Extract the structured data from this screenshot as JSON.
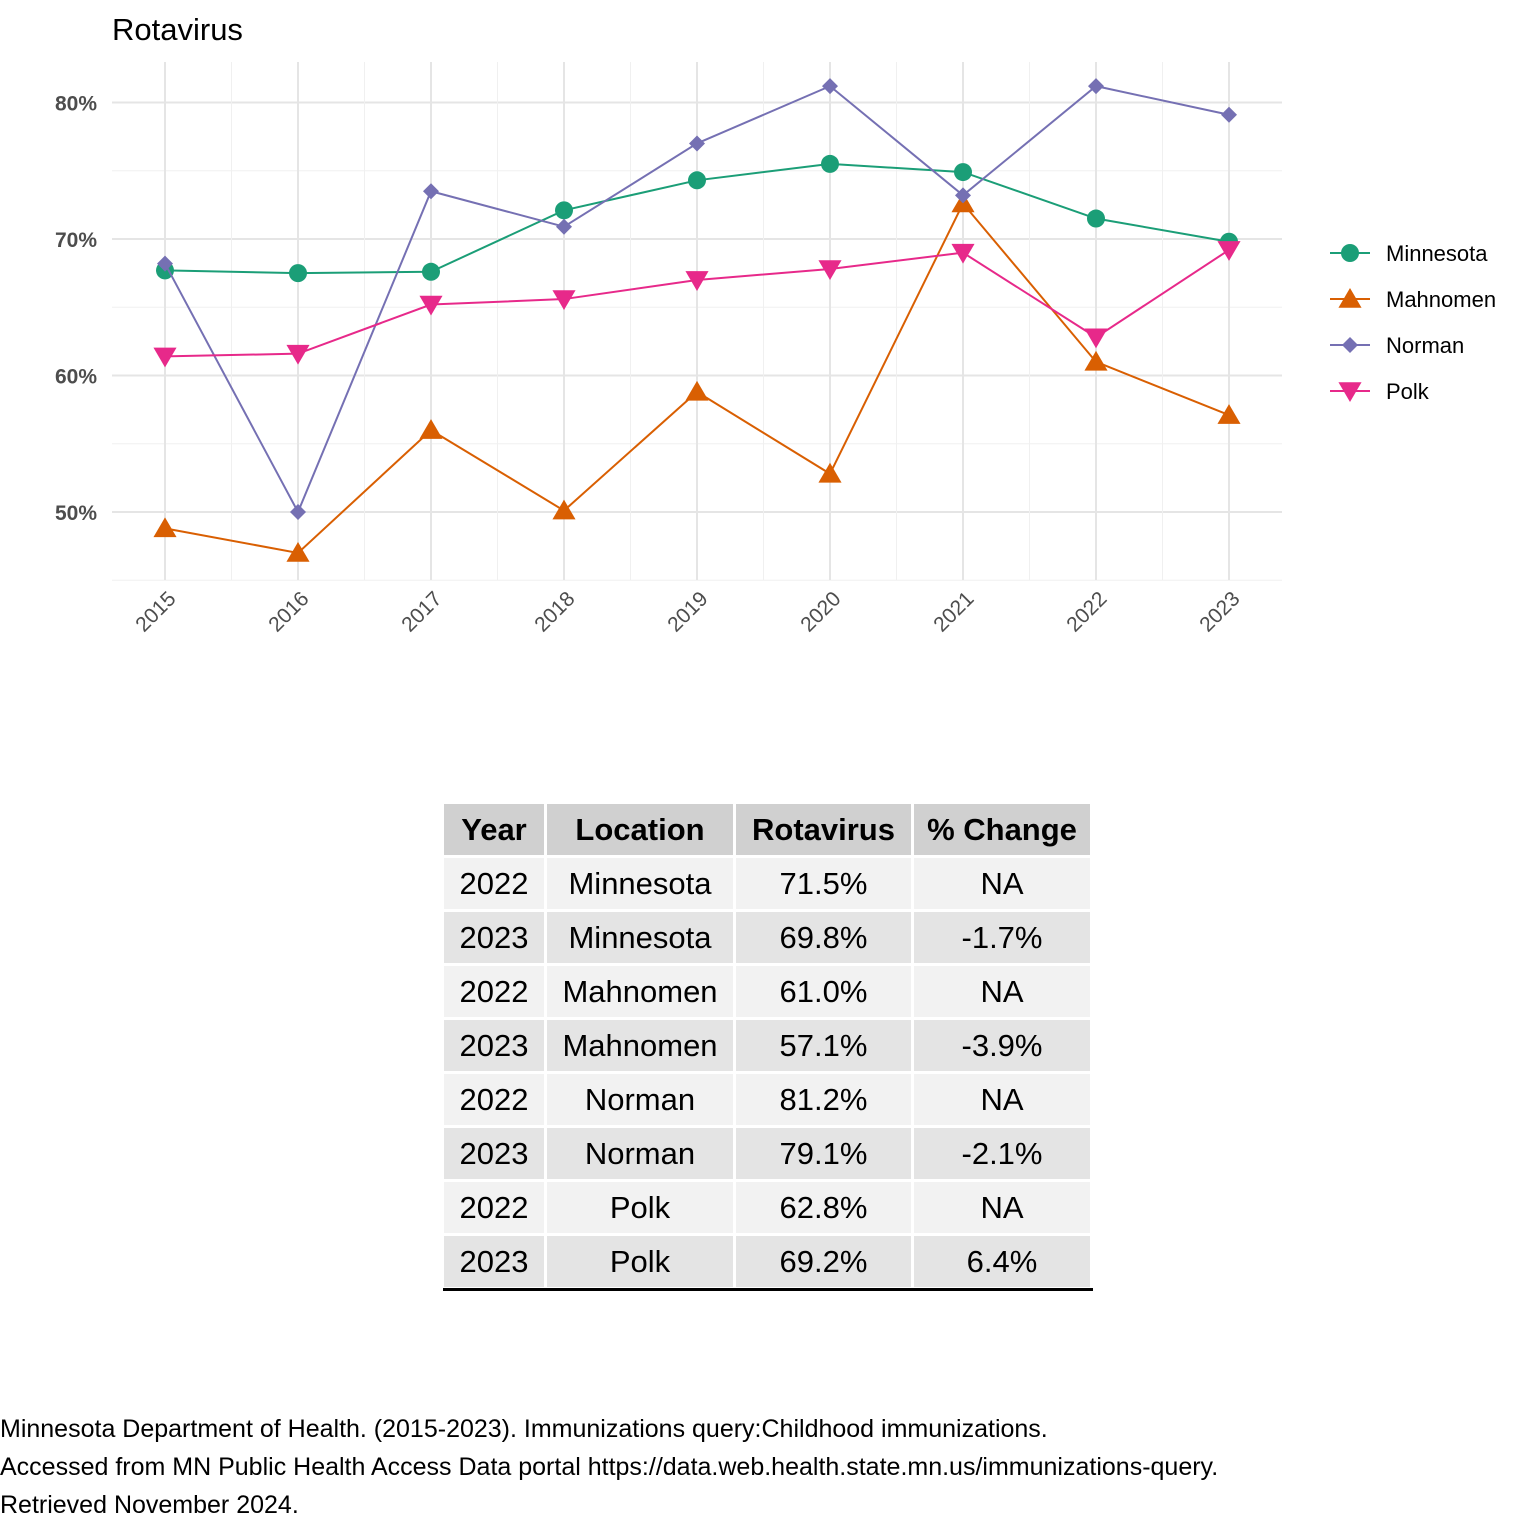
{
  "chart_data": {
    "type": "line",
    "title": "Rotavirus",
    "xlabel": "",
    "ylabel": "",
    "x": [
      "2015",
      "2016",
      "2017",
      "2018",
      "2019",
      "2020",
      "2021",
      "2022",
      "2023"
    ],
    "ylim": [
      45,
      82.5
    ],
    "yticks": [
      "50%",
      "60%",
      "70%",
      "80%"
    ],
    "grid": true,
    "legend_position": "right",
    "series": [
      {
        "name": "Minnesota",
        "color": "#1b9e77",
        "marker": "circle",
        "values": [
          67.7,
          67.5,
          67.6,
          72.1,
          74.3,
          75.5,
          74.9,
          71.5,
          69.8
        ]
      },
      {
        "name": "Mahnomen",
        "color": "#d95f02",
        "marker": "triangle-up",
        "values": [
          48.8,
          47.0,
          56.0,
          50.1,
          58.8,
          52.8,
          72.6,
          61.0,
          57.1
        ]
      },
      {
        "name": "Norman",
        "color": "#7570b3",
        "marker": "diamond",
        "values": [
          68.2,
          50.0,
          73.5,
          70.9,
          77.0,
          81.2,
          73.2,
          81.2,
          79.1
        ]
      },
      {
        "name": "Polk",
        "color": "#e7298a",
        "marker": "triangle-down",
        "values": [
          61.4,
          61.6,
          65.2,
          65.6,
          67.0,
          67.8,
          69.0,
          62.8,
          69.2
        ]
      }
    ]
  },
  "table": {
    "headers": [
      "Year",
      "Location",
      "Rotavirus",
      "% Change"
    ],
    "rows": [
      [
        "2022",
        "Minnesota",
        "71.5%",
        "NA"
      ],
      [
        "2023",
        "Minnesota",
        "69.8%",
        "-1.7%"
      ],
      [
        "2022",
        "Mahnomen",
        "61.0%",
        "NA"
      ],
      [
        "2023",
        "Mahnomen",
        "57.1%",
        "-3.9%"
      ],
      [
        "2022",
        "Norman",
        "81.2%",
        "NA"
      ],
      [
        "2023",
        "Norman",
        "79.1%",
        "-2.1%"
      ],
      [
        "2022",
        "Polk",
        "62.8%",
        "NA"
      ],
      [
        "2023",
        "Polk",
        "69.2%",
        "6.4%"
      ]
    ]
  },
  "citation": {
    "line1": "Minnesota Department of Health. (2015-2023). Immunizations query:Childhood immunizations.",
    "line2": "Accessed from MN Public Health Access Data portal https://data.web.health.state.mn.us/immunizations-query.",
    "line3": "Retrieved November 2024."
  }
}
